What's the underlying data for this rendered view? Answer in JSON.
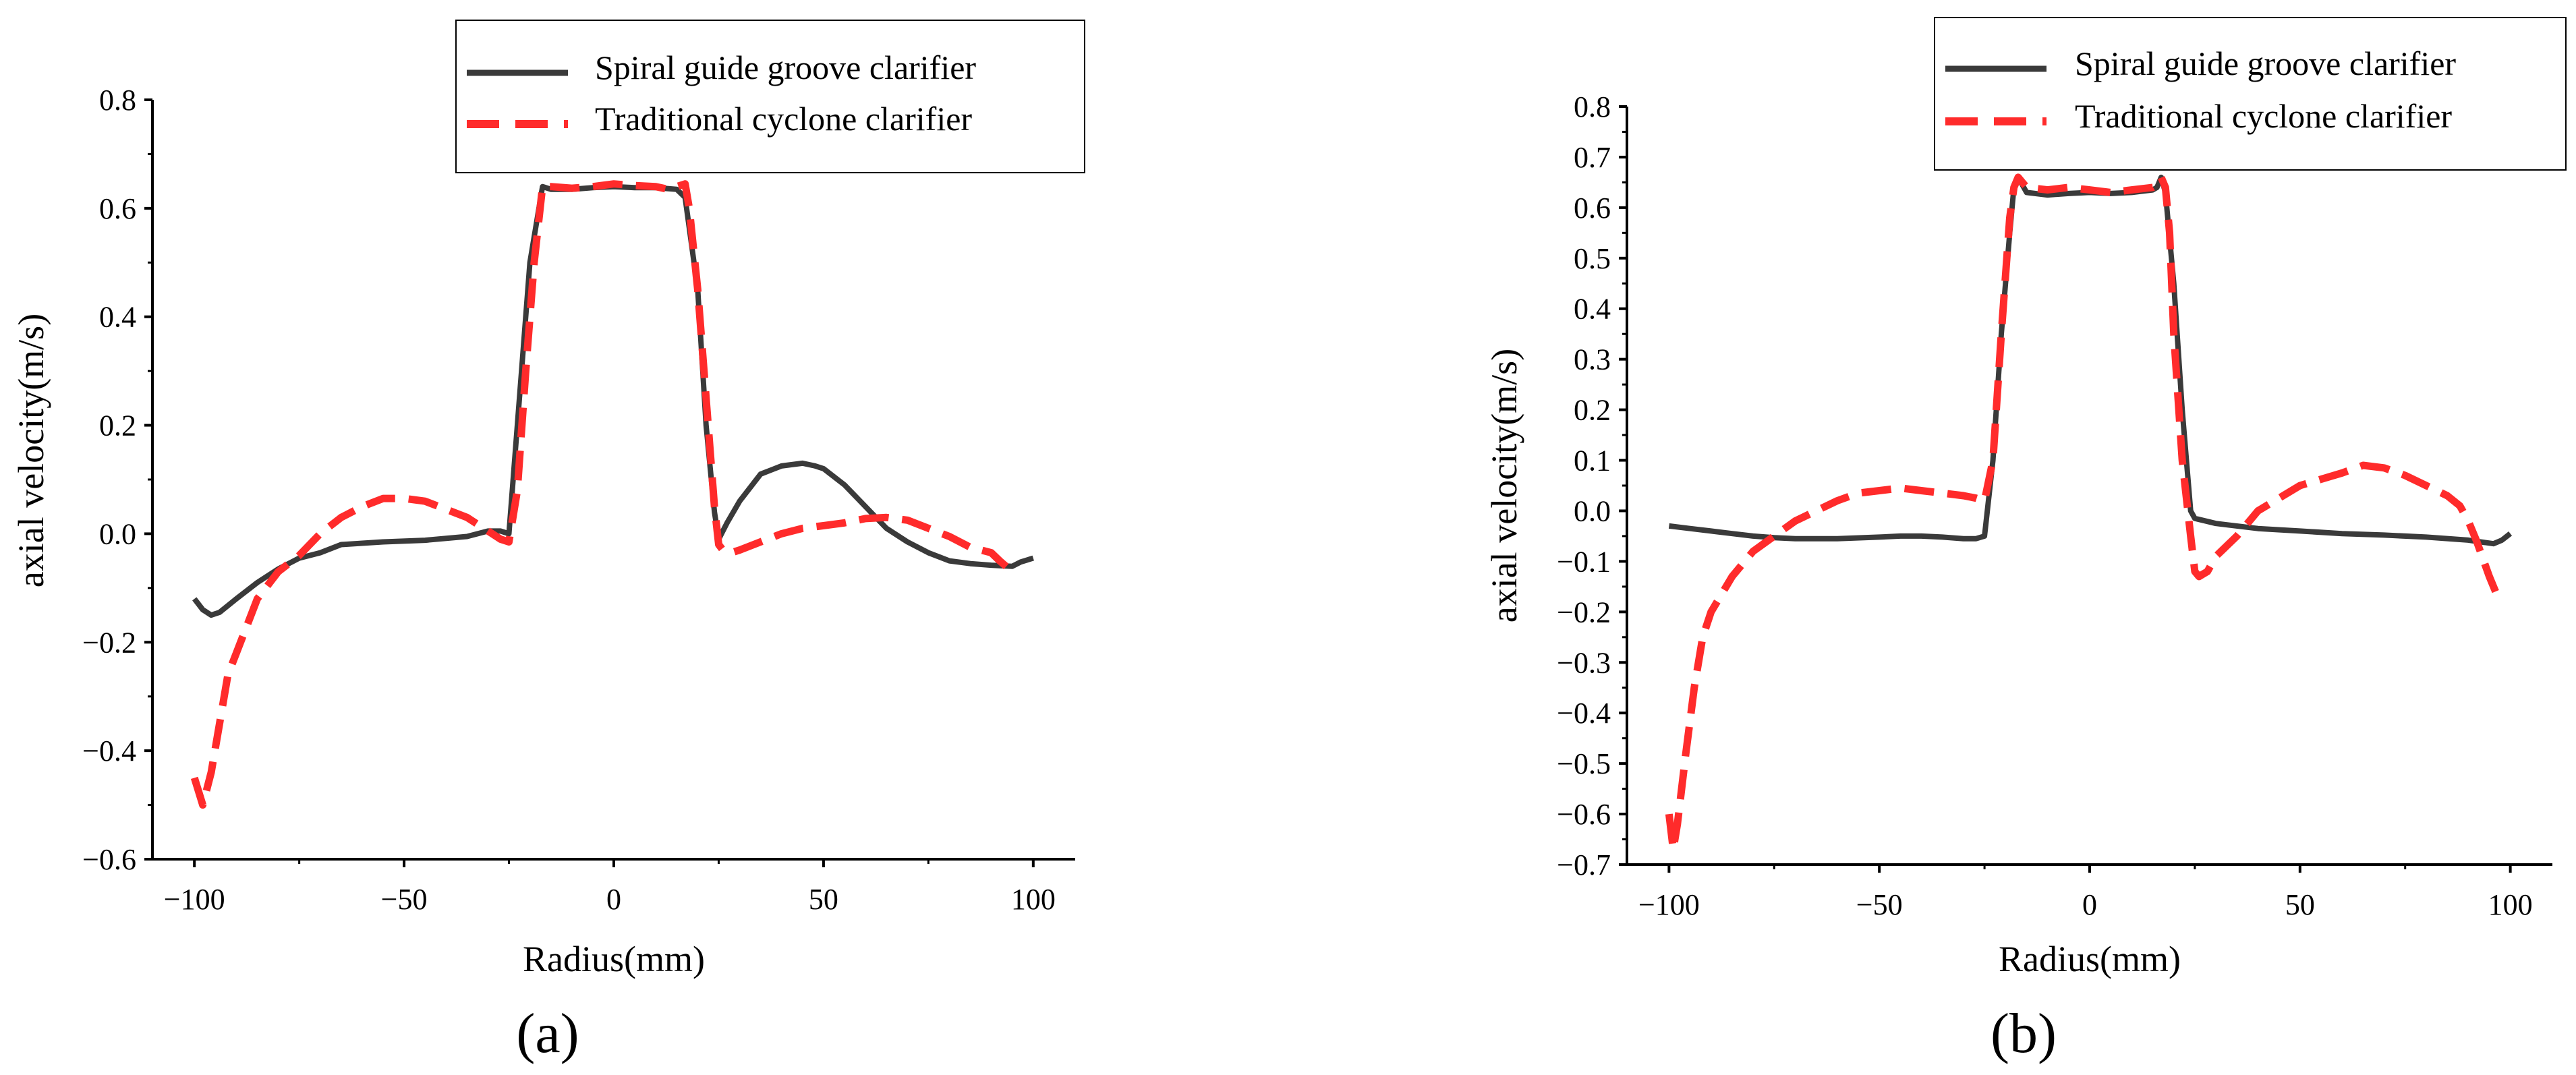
{
  "figure": {
    "panels": [
      "(a)",
      "(b)"
    ]
  },
  "colors": {
    "spiral": "#3a3a3a",
    "traditional": "#ff2b2b",
    "axis": "#000000"
  },
  "chart_data": [
    {
      "type": "line",
      "panel_label": "a",
      "title": "",
      "xlabel": "Radius(mm)",
      "ylabel": "axial velocity(m/s)",
      "xlim": [
        -110,
        110
      ],
      "ylim": [
        -0.6,
        0.8
      ],
      "xticks": [
        -100,
        -50,
        0,
        50,
        100
      ],
      "xtick_labels": [
        "−100",
        "−50",
        "0",
        "50",
        "100"
      ],
      "yticks": [
        -0.6,
        -0.4,
        -0.2,
        0.0,
        0.2,
        0.4,
        0.6,
        0.8
      ],
      "ytick_labels": [
        "−0.6",
        "−0.4",
        "−0.2",
        "0.0",
        "0.2",
        "0.4",
        "0.6",
        "0.8"
      ],
      "legend_position": "top-right",
      "grid": false,
      "series": [
        {
          "name": "Spiral guide groove clarifier",
          "style": "solid",
          "x": [
            -100,
            -98,
            -96,
            -94,
            -90,
            -85,
            -80,
            -75,
            -70,
            -65,
            -55,
            -45,
            -35,
            -30,
            -27,
            -25,
            -22,
            -20,
            -17,
            -15,
            -10,
            -5,
            0,
            5,
            10,
            15,
            17,
            20,
            22,
            24,
            25,
            27,
            30,
            35,
            40,
            45,
            48,
            50,
            55,
            60,
            65,
            70,
            75,
            80,
            85,
            90,
            95,
            97,
            100
          ],
          "y": [
            -0.12,
            -0.14,
            -0.15,
            -0.145,
            -0.12,
            -0.09,
            -0.065,
            -0.045,
            -0.035,
            -0.02,
            -0.015,
            -0.012,
            -0.005,
            0.005,
            0.005,
            0.0,
            0.3,
            0.5,
            0.64,
            0.635,
            0.635,
            0.638,
            0.64,
            0.638,
            0.638,
            0.635,
            0.62,
            0.45,
            0.2,
            0.04,
            -0.01,
            0.02,
            0.06,
            0.11,
            0.125,
            0.13,
            0.125,
            0.12,
            0.09,
            0.05,
            0.01,
            -0.015,
            -0.035,
            -0.05,
            -0.055,
            -0.058,
            -0.06,
            -0.052,
            -0.045
          ]
        },
        {
          "name": "Traditional cyclone clarifier",
          "style": "dashed",
          "x": [
            -100,
            -98,
            -96,
            -94,
            -92,
            -90,
            -85,
            -80,
            -75,
            -70,
            -65,
            -60,
            -55,
            -50,
            -45,
            -40,
            -35,
            -30,
            -27,
            -25,
            -23,
            -21,
            -19,
            -17,
            -15,
            -10,
            -5,
            0,
            5,
            10,
            13,
            15,
            17,
            18,
            20,
            22,
            24,
            25,
            26,
            28,
            30,
            35,
            40,
            45,
            50,
            55,
            60,
            65,
            70,
            75,
            80,
            85,
            90,
            92,
            95
          ],
          "y": [
            -0.45,
            -0.5,
            -0.44,
            -0.35,
            -0.26,
            -0.22,
            -0.12,
            -0.07,
            -0.04,
            0.0,
            0.03,
            0.05,
            0.065,
            0.065,
            0.06,
            0.045,
            0.03,
            0.005,
            -0.01,
            -0.015,
            0.08,
            0.3,
            0.5,
            0.64,
            0.64,
            0.637,
            0.64,
            0.645,
            0.642,
            0.64,
            0.635,
            0.64,
            0.645,
            0.6,
            0.45,
            0.25,
            0.05,
            -0.02,
            -0.03,
            -0.035,
            -0.03,
            -0.015,
            0.0,
            0.01,
            0.015,
            0.02,
            0.028,
            0.03,
            0.025,
            0.01,
            -0.005,
            -0.025,
            -0.035,
            -0.05,
            -0.07
          ]
        }
      ]
    },
    {
      "type": "line",
      "panel_label": "b",
      "title": "",
      "xlabel": "Radius(mm)",
      "ylabel": "axial velocity(m/s)",
      "xlim": [
        -110,
        110
      ],
      "ylim": [
        -0.7,
        0.8
      ],
      "xticks": [
        -100,
        -50,
        0,
        50,
        100
      ],
      "xtick_labels": [
        "−100",
        "−50",
        "0",
        "50",
        "100"
      ],
      "yticks": [
        -0.7,
        -0.6,
        -0.5,
        -0.4,
        -0.3,
        -0.2,
        -0.1,
        0.0,
        0.1,
        0.2,
        0.3,
        0.4,
        0.5,
        0.6,
        0.7,
        0.8
      ],
      "ytick_labels": [
        "−0.7",
        "−0.6",
        "−0.5",
        "−0.4",
        "−0.3",
        "−0.2",
        "−0.1",
        "0.0",
        "0.1",
        "0.2",
        "0.3",
        "0.4",
        "0.5",
        "0.6",
        "0.7",
        "0.8"
      ],
      "legend_position": "top-right",
      "grid": false,
      "series": [
        {
          "name": "Spiral guide groove clarifier",
          "style": "solid",
          "x": [
            -100,
            -95,
            -90,
            -85,
            -80,
            -75,
            -70,
            -60,
            -50,
            -45,
            -40,
            -35,
            -30,
            -27,
            -25,
            -23,
            -21,
            -19,
            -18,
            -17,
            -15,
            -10,
            -5,
            0,
            5,
            10,
            15,
            16,
            17,
            18,
            20,
            22,
            24,
            25,
            30,
            40,
            50,
            60,
            70,
            80,
            90,
            96,
            98,
            100
          ],
          "y": [
            -0.03,
            -0.035,
            -0.04,
            -0.045,
            -0.05,
            -0.053,
            -0.055,
            -0.055,
            -0.052,
            -0.05,
            -0.05,
            -0.052,
            -0.055,
            -0.055,
            -0.05,
            0.1,
            0.35,
            0.55,
            0.64,
            0.66,
            0.63,
            0.625,
            0.628,
            0.63,
            0.628,
            0.63,
            0.635,
            0.64,
            0.66,
            0.63,
            0.45,
            0.2,
            0.0,
            -0.015,
            -0.025,
            -0.035,
            -0.04,
            -0.045,
            -0.048,
            -0.052,
            -0.058,
            -0.065,
            -0.058,
            -0.045
          ]
        },
        {
          "name": "Traditional cyclone clarifier",
          "style": "dashed",
          "x": [
            -100,
            -99,
            -98,
            -96,
            -94,
            -92,
            -90,
            -85,
            -80,
            -75,
            -70,
            -65,
            -60,
            -55,
            -50,
            -45,
            -40,
            -35,
            -30,
            -27,
            -25,
            -23,
            -21,
            -19,
            -18,
            -17,
            -15,
            -10,
            -5,
            0,
            5,
            10,
            15,
            16,
            17,
            18,
            19,
            20,
            22,
            24,
            25,
            26,
            28,
            30,
            35,
            40,
            50,
            60,
            65,
            70,
            75,
            80,
            85,
            88,
            90,
            92,
            95,
            97
          ],
          "y": [
            -0.6,
            -0.67,
            -0.62,
            -0.48,
            -0.35,
            -0.25,
            -0.2,
            -0.13,
            -0.08,
            -0.05,
            -0.02,
            0.0,
            0.02,
            0.035,
            0.04,
            0.045,
            0.04,
            0.035,
            0.03,
            0.025,
            0.02,
            0.1,
            0.35,
            0.58,
            0.64,
            0.66,
            0.64,
            0.635,
            0.64,
            0.635,
            0.63,
            0.635,
            0.64,
            0.645,
            0.66,
            0.64,
            0.55,
            0.35,
            0.1,
            -0.05,
            -0.12,
            -0.13,
            -0.12,
            -0.09,
            -0.05,
            0.0,
            0.05,
            0.075,
            0.09,
            0.085,
            0.07,
            0.05,
            0.03,
            0.01,
            -0.02,
            -0.06,
            -0.13,
            -0.17
          ]
        }
      ]
    }
  ]
}
